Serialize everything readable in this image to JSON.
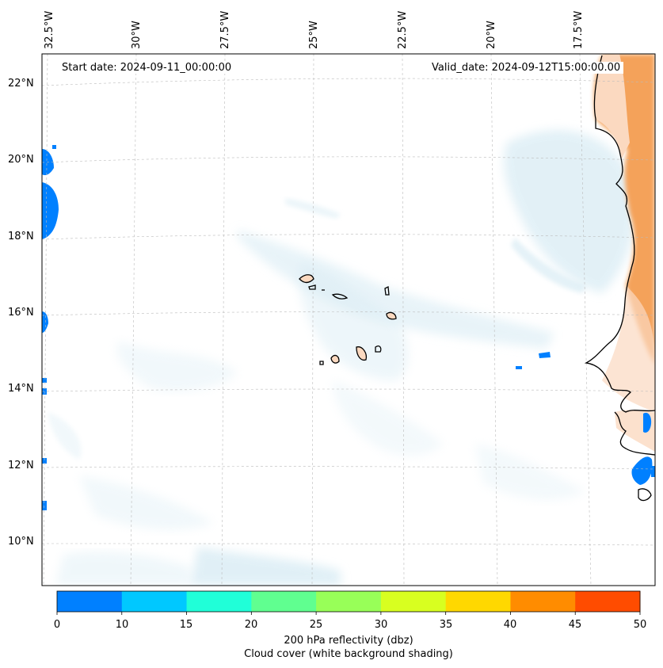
{
  "map": {
    "start_label": "Start date: 2024-09-11_00:00:00",
    "valid_label": "Valid_date: 2024-09-12T15:00:00.00",
    "lon_ticks": [
      "32.5°W",
      "30°W",
      "27.5°W",
      "25°W",
      "22.5°W",
      "20°W",
      "17.5°W"
    ],
    "lat_ticks": [
      "22°N",
      "20°N",
      "18°N",
      "16°N",
      "14°N",
      "12°N",
      "10°N"
    ],
    "extent": {
      "lon": [
        -33,
        -15.7
      ],
      "lat": [
        9,
        22.8
      ]
    }
  },
  "colorbar": {
    "ticks": [
      "0",
      "10",
      "15",
      "20",
      "25",
      "30",
      "35",
      "40",
      "45",
      "50"
    ],
    "colors": [
      "#0080ff",
      "#00c8ff",
      "#20ffd8",
      "#60ff90",
      "#98ff58",
      "#d8ff20",
      "#ffd800",
      "#ff8c00",
      "#ff4c00"
    ],
    "label": "200 hPa reflectivity (dbz)",
    "sublabel": "Cloud cover (white background shading)"
  },
  "colors": {
    "cloud": "#d9ecf4",
    "land_high": "#f4a25a",
    "land_low": "#fbd9c0",
    "coast": "#000000"
  }
}
